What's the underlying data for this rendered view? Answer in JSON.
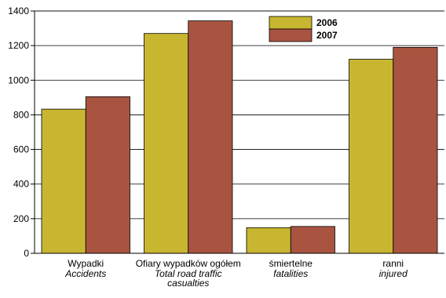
{
  "chart_data": {
    "type": "bar",
    "title": "",
    "xlabel": "",
    "ylabel": "",
    "ylim": [
      0,
      1400
    ],
    "yticks": [
      0,
      200,
      400,
      600,
      800,
      1000,
      1200,
      1400
    ],
    "grid": true,
    "legend_position": "top-center",
    "categories": [
      {
        "pl": "Wypadki",
        "en": [
          "Accidents"
        ]
      },
      {
        "pl": "Ofiary wypadków ogółem",
        "en": [
          "Total road traffic",
          "casualties"
        ]
      },
      {
        "pl": "śmiertelne",
        "en": [
          "fatalities"
        ]
      },
      {
        "pl": "ranni",
        "en": [
          "injured"
        ]
      }
    ],
    "series": [
      {
        "name": "2006",
        "color": "#c8b630",
        "values": [
          833,
          1270,
          148,
          1121
        ]
      },
      {
        "name": "2007",
        "color": "#a85440",
        "values": [
          905,
          1343,
          155,
          1190
        ]
      }
    ]
  }
}
